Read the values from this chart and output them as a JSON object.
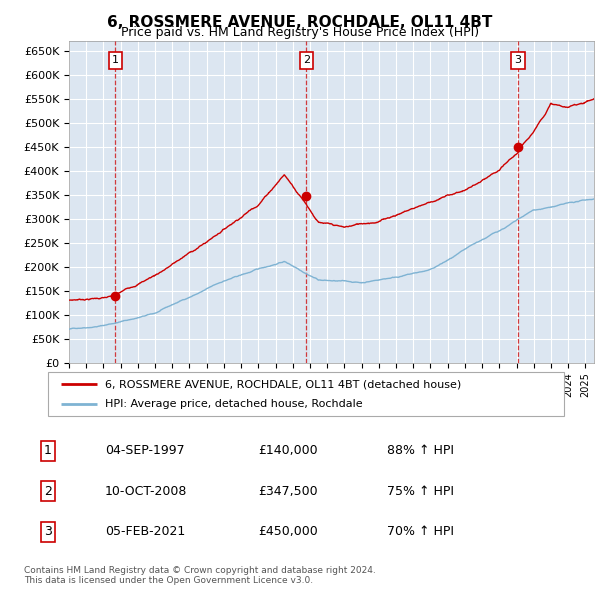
{
  "title": "6, ROSSMERE AVENUE, ROCHDALE, OL11 4BT",
  "subtitle": "Price paid vs. HM Land Registry's House Price Index (HPI)",
  "ylabel_ticks": [
    "£0",
    "£50K",
    "£100K",
    "£150K",
    "£200K",
    "£250K",
    "£300K",
    "£350K",
    "£400K",
    "£450K",
    "£500K",
    "£550K",
    "£600K",
    "£650K"
  ],
  "ytick_values": [
    0,
    50000,
    100000,
    150000,
    200000,
    250000,
    300000,
    350000,
    400000,
    450000,
    500000,
    550000,
    600000,
    650000
  ],
  "ylim": [
    0,
    670000
  ],
  "xlim_start": 1995,
  "xlim_end": 2025.5,
  "bg_color": "#dce6f1",
  "grid_color": "#ffffff",
  "sale1_x": 1997.68,
  "sale1_y": 140000,
  "sale1_label": "1",
  "sale1_date": "04-SEP-1997",
  "sale1_price": "£140,000",
  "sale1_hpi": "88% ↑ HPI",
  "sale2_x": 2008.78,
  "sale2_y": 347500,
  "sale2_label": "2",
  "sale2_date": "10-OCT-2008",
  "sale2_price": "£347,500",
  "sale2_hpi": "75% ↑ HPI",
  "sale3_x": 2021.09,
  "sale3_y": 450000,
  "sale3_label": "3",
  "sale3_date": "05-FEB-2021",
  "sale3_price": "£450,000",
  "sale3_hpi": "70% ↑ HPI",
  "line1_color": "#cc0000",
  "line2_color": "#7fb3d3",
  "vline_color": "#cc0000",
  "footer": "Contains HM Land Registry data © Crown copyright and database right 2024.\nThis data is licensed under the Open Government Licence v3.0.",
  "legend1": "6, ROSSMERE AVENUE, ROCHDALE, OL11 4BT (detached house)",
  "legend2": "HPI: Average price, detached house, Rochdale"
}
